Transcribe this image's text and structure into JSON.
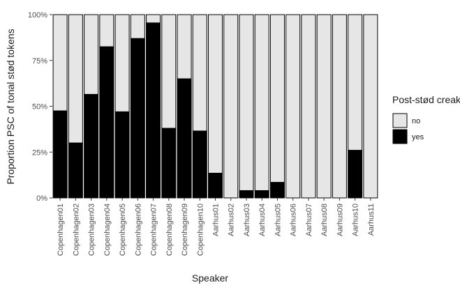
{
  "chart_data": {
    "type": "bar",
    "stacked": true,
    "xlabel": "Speaker",
    "ylabel": "Proportion PSC of tonal stød tokens",
    "ylim": [
      0,
      1
    ],
    "y_ticks": [
      "0%",
      "25%",
      "50%",
      "75%",
      "100%"
    ],
    "categories": [
      "Copenhagen01",
      "Copenhagen02",
      "Copenhagen03",
      "Copenhagen04",
      "Copenhagen05",
      "Copenhagen06",
      "Copenhagen07",
      "Copenhagen08",
      "Copenhagen09",
      "Copenhagen10",
      "Aarhus01",
      "Aarhus02",
      "Aarhus03",
      "Aarhus04",
      "Aarhus05",
      "Aarhus06",
      "Aarhus07",
      "Aarhus08",
      "Aarhus09",
      "Aarhus10",
      "Aarhus11"
    ],
    "series": [
      {
        "name": "yes",
        "color": "#000000",
        "values": [
          0.475,
          0.3,
          0.565,
          0.825,
          0.47,
          0.87,
          0.955,
          0.38,
          0.65,
          0.365,
          0.135,
          0.0,
          0.04,
          0.04,
          0.085,
          0.0,
          0.0,
          0.0,
          0.0,
          0.26,
          0.0
        ]
      },
      {
        "name": "no",
        "color": "#e6e6e6",
        "values": [
          0.525,
          0.7,
          0.435,
          0.175,
          0.53,
          0.13,
          0.045,
          0.62,
          0.35,
          0.635,
          0.865,
          1.0,
          0.96,
          0.96,
          0.915,
          1.0,
          1.0,
          1.0,
          1.0,
          0.74,
          1.0
        ]
      }
    ],
    "legend": {
      "title": "Post-stød creak",
      "position": "right",
      "entries": [
        {
          "label": "no",
          "color": "#e6e6e6"
        },
        {
          "label": "yes",
          "color": "#000000"
        }
      ]
    },
    "grid": false
  }
}
